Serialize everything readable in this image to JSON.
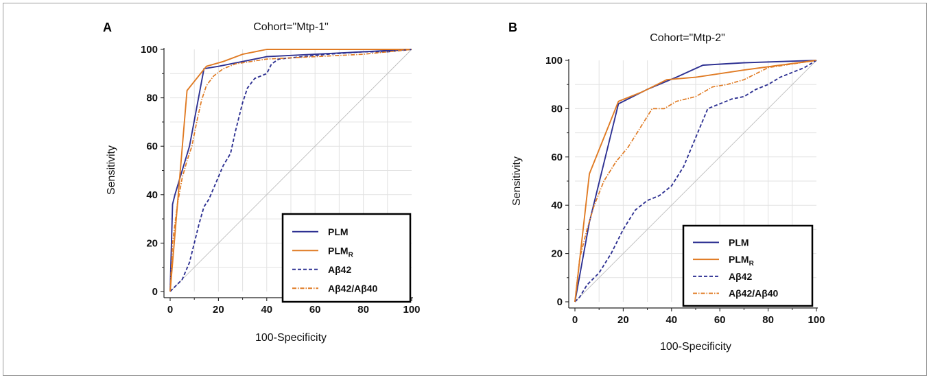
{
  "colors": {
    "plm": "#2e3192",
    "plm_r": "#e07b24",
    "ab42": "#2e3192",
    "ratio": "#e07b24",
    "diag": "#bdbdbd",
    "grid": "#e2e2e2"
  },
  "chart_data": [
    {
      "type": "line",
      "panel_label": "A",
      "title": "Cohort=\"Mtp-1\"",
      "xlabel": "100-Specificity",
      "ylabel": "Sensitivity",
      "xlim": [
        0,
        100
      ],
      "ylim": [
        0,
        100
      ],
      "xticks": [
        "0",
        "20",
        "40",
        "60",
        "80",
        "100"
      ],
      "yticks": [
        "0",
        "20",
        "40",
        "60",
        "80",
        "100"
      ],
      "grid": true,
      "legend_position": "bottom-right",
      "series": [
        {
          "name": "PLM",
          "sub": "",
          "style": "solid",
          "color_key": "plm",
          "points": [
            [
              0,
              0
            ],
            [
              1,
              36
            ],
            [
              2,
              40
            ],
            [
              8,
              60
            ],
            [
              14,
              92
            ],
            [
              20,
              93
            ],
            [
              30,
              95
            ],
            [
              40,
              97
            ],
            [
              60,
              98
            ],
            [
              80,
              99
            ],
            [
              100,
              100
            ]
          ]
        },
        {
          "name": "PLM",
          "sub": "R",
          "style": "solid",
          "color_key": "plm_r",
          "points": [
            [
              0,
              0
            ],
            [
              7,
              83
            ],
            [
              15,
              93
            ],
            [
              22,
              95
            ],
            [
              30,
              98
            ],
            [
              40,
              100
            ],
            [
              100,
              100
            ]
          ]
        },
        {
          "name": "Aβ42",
          "sub": "",
          "style": "dashed",
          "color_key": "ab42",
          "points": [
            [
              0,
              0
            ],
            [
              2,
              2
            ],
            [
              5,
              5
            ],
            [
              8,
              12
            ],
            [
              10,
              20
            ],
            [
              12,
              28
            ],
            [
              14,
              35
            ],
            [
              16,
              38
            ],
            [
              19,
              45
            ],
            [
              22,
              52
            ],
            [
              25,
              57
            ],
            [
              27,
              66
            ],
            [
              30,
              78
            ],
            [
              32,
              84
            ],
            [
              35,
              88
            ],
            [
              40,
              90
            ],
            [
              42,
              94
            ],
            [
              45,
              96
            ],
            [
              55,
              97
            ],
            [
              65,
              98
            ],
            [
              80,
              99
            ],
            [
              90,
              99
            ],
            [
              100,
              100
            ]
          ]
        },
        {
          "name": "Aβ42/Aβ40",
          "sub": "",
          "style": "dashdot",
          "color_key": "ratio",
          "points": [
            [
              0,
              0
            ],
            [
              1,
              20
            ],
            [
              3,
              36
            ],
            [
              5,
              47
            ],
            [
              7,
              54
            ],
            [
              9,
              60
            ],
            [
              11,
              70
            ],
            [
              13,
              79
            ],
            [
              15,
              85
            ],
            [
              18,
              89
            ],
            [
              22,
              92
            ],
            [
              27,
              94
            ],
            [
              40,
              96
            ],
            [
              60,
              97
            ],
            [
              80,
              98
            ],
            [
              100,
              100
            ]
          ]
        },
        {
          "name": "",
          "sub": "",
          "style": "reference",
          "color_key": "diag",
          "points": [
            [
              0,
              0
            ],
            [
              100,
              100
            ]
          ]
        }
      ]
    },
    {
      "type": "line",
      "panel_label": "B",
      "title": "Cohort=\"Mtp-2\"",
      "xlabel": "100-Specificity",
      "ylabel": "Sensitivity",
      "xlim": [
        0,
        100
      ],
      "ylim": [
        0,
        100
      ],
      "xticks": [
        "0",
        "20",
        "40",
        "60",
        "80",
        "100"
      ],
      "yticks": [
        "0",
        "20",
        "40",
        "60",
        "80",
        "100"
      ],
      "grid": true,
      "legend_position": "bottom-right",
      "series": [
        {
          "name": "PLM",
          "sub": "",
          "style": "solid",
          "color_key": "plm",
          "points": [
            [
              0,
              0
            ],
            [
              6,
              33
            ],
            [
              18,
              82
            ],
            [
              30,
              88
            ],
            [
              42,
              93
            ],
            [
              53,
              98
            ],
            [
              70,
              99
            ],
            [
              100,
              100
            ]
          ]
        },
        {
          "name": "PLM",
          "sub": "R",
          "style": "solid",
          "color_key": "plm_r",
          "points": [
            [
              0,
              0
            ],
            [
              6,
              53
            ],
            [
              18,
              83
            ],
            [
              28,
              87
            ],
            [
              38,
              92
            ],
            [
              50,
              93
            ],
            [
              70,
              96
            ],
            [
              85,
              98
            ],
            [
              100,
              100
            ]
          ]
        },
        {
          "name": "Aβ42",
          "sub": "",
          "style": "dashed",
          "color_key": "ab42",
          "points": [
            [
              0,
              0
            ],
            [
              2,
              2
            ],
            [
              5,
              7
            ],
            [
              10,
              12
            ],
            [
              15,
              20
            ],
            [
              20,
              30
            ],
            [
              25,
              38
            ],
            [
              30,
              42
            ],
            [
              35,
              44
            ],
            [
              40,
              48
            ],
            [
              45,
              56
            ],
            [
              50,
              68
            ],
            [
              55,
              80
            ],
            [
              60,
              82
            ],
            [
              65,
              84
            ],
            [
              70,
              85
            ],
            [
              75,
              88
            ],
            [
              80,
              90
            ],
            [
              85,
              93
            ],
            [
              90,
              95
            ],
            [
              95,
              97
            ],
            [
              100,
              100
            ]
          ]
        },
        {
          "name": "Aβ42/Aβ40",
          "sub": "",
          "style": "dashdot",
          "color_key": "ratio",
          "points": [
            [
              0,
              0
            ],
            [
              2,
              18
            ],
            [
              5,
              30
            ],
            [
              8,
              40
            ],
            [
              12,
              50
            ],
            [
              17,
              58
            ],
            [
              22,
              64
            ],
            [
              27,
              72
            ],
            [
              32,
              80
            ],
            [
              37,
              80
            ],
            [
              42,
              83
            ],
            [
              50,
              85
            ],
            [
              57,
              89
            ],
            [
              63,
              90
            ],
            [
              70,
              92
            ],
            [
              80,
              97
            ],
            [
              100,
              100
            ]
          ]
        },
        {
          "name": "",
          "sub": "",
          "style": "reference",
          "color_key": "diag",
          "points": [
            [
              0,
              0
            ],
            [
              100,
              100
            ]
          ]
        }
      ]
    }
  ]
}
